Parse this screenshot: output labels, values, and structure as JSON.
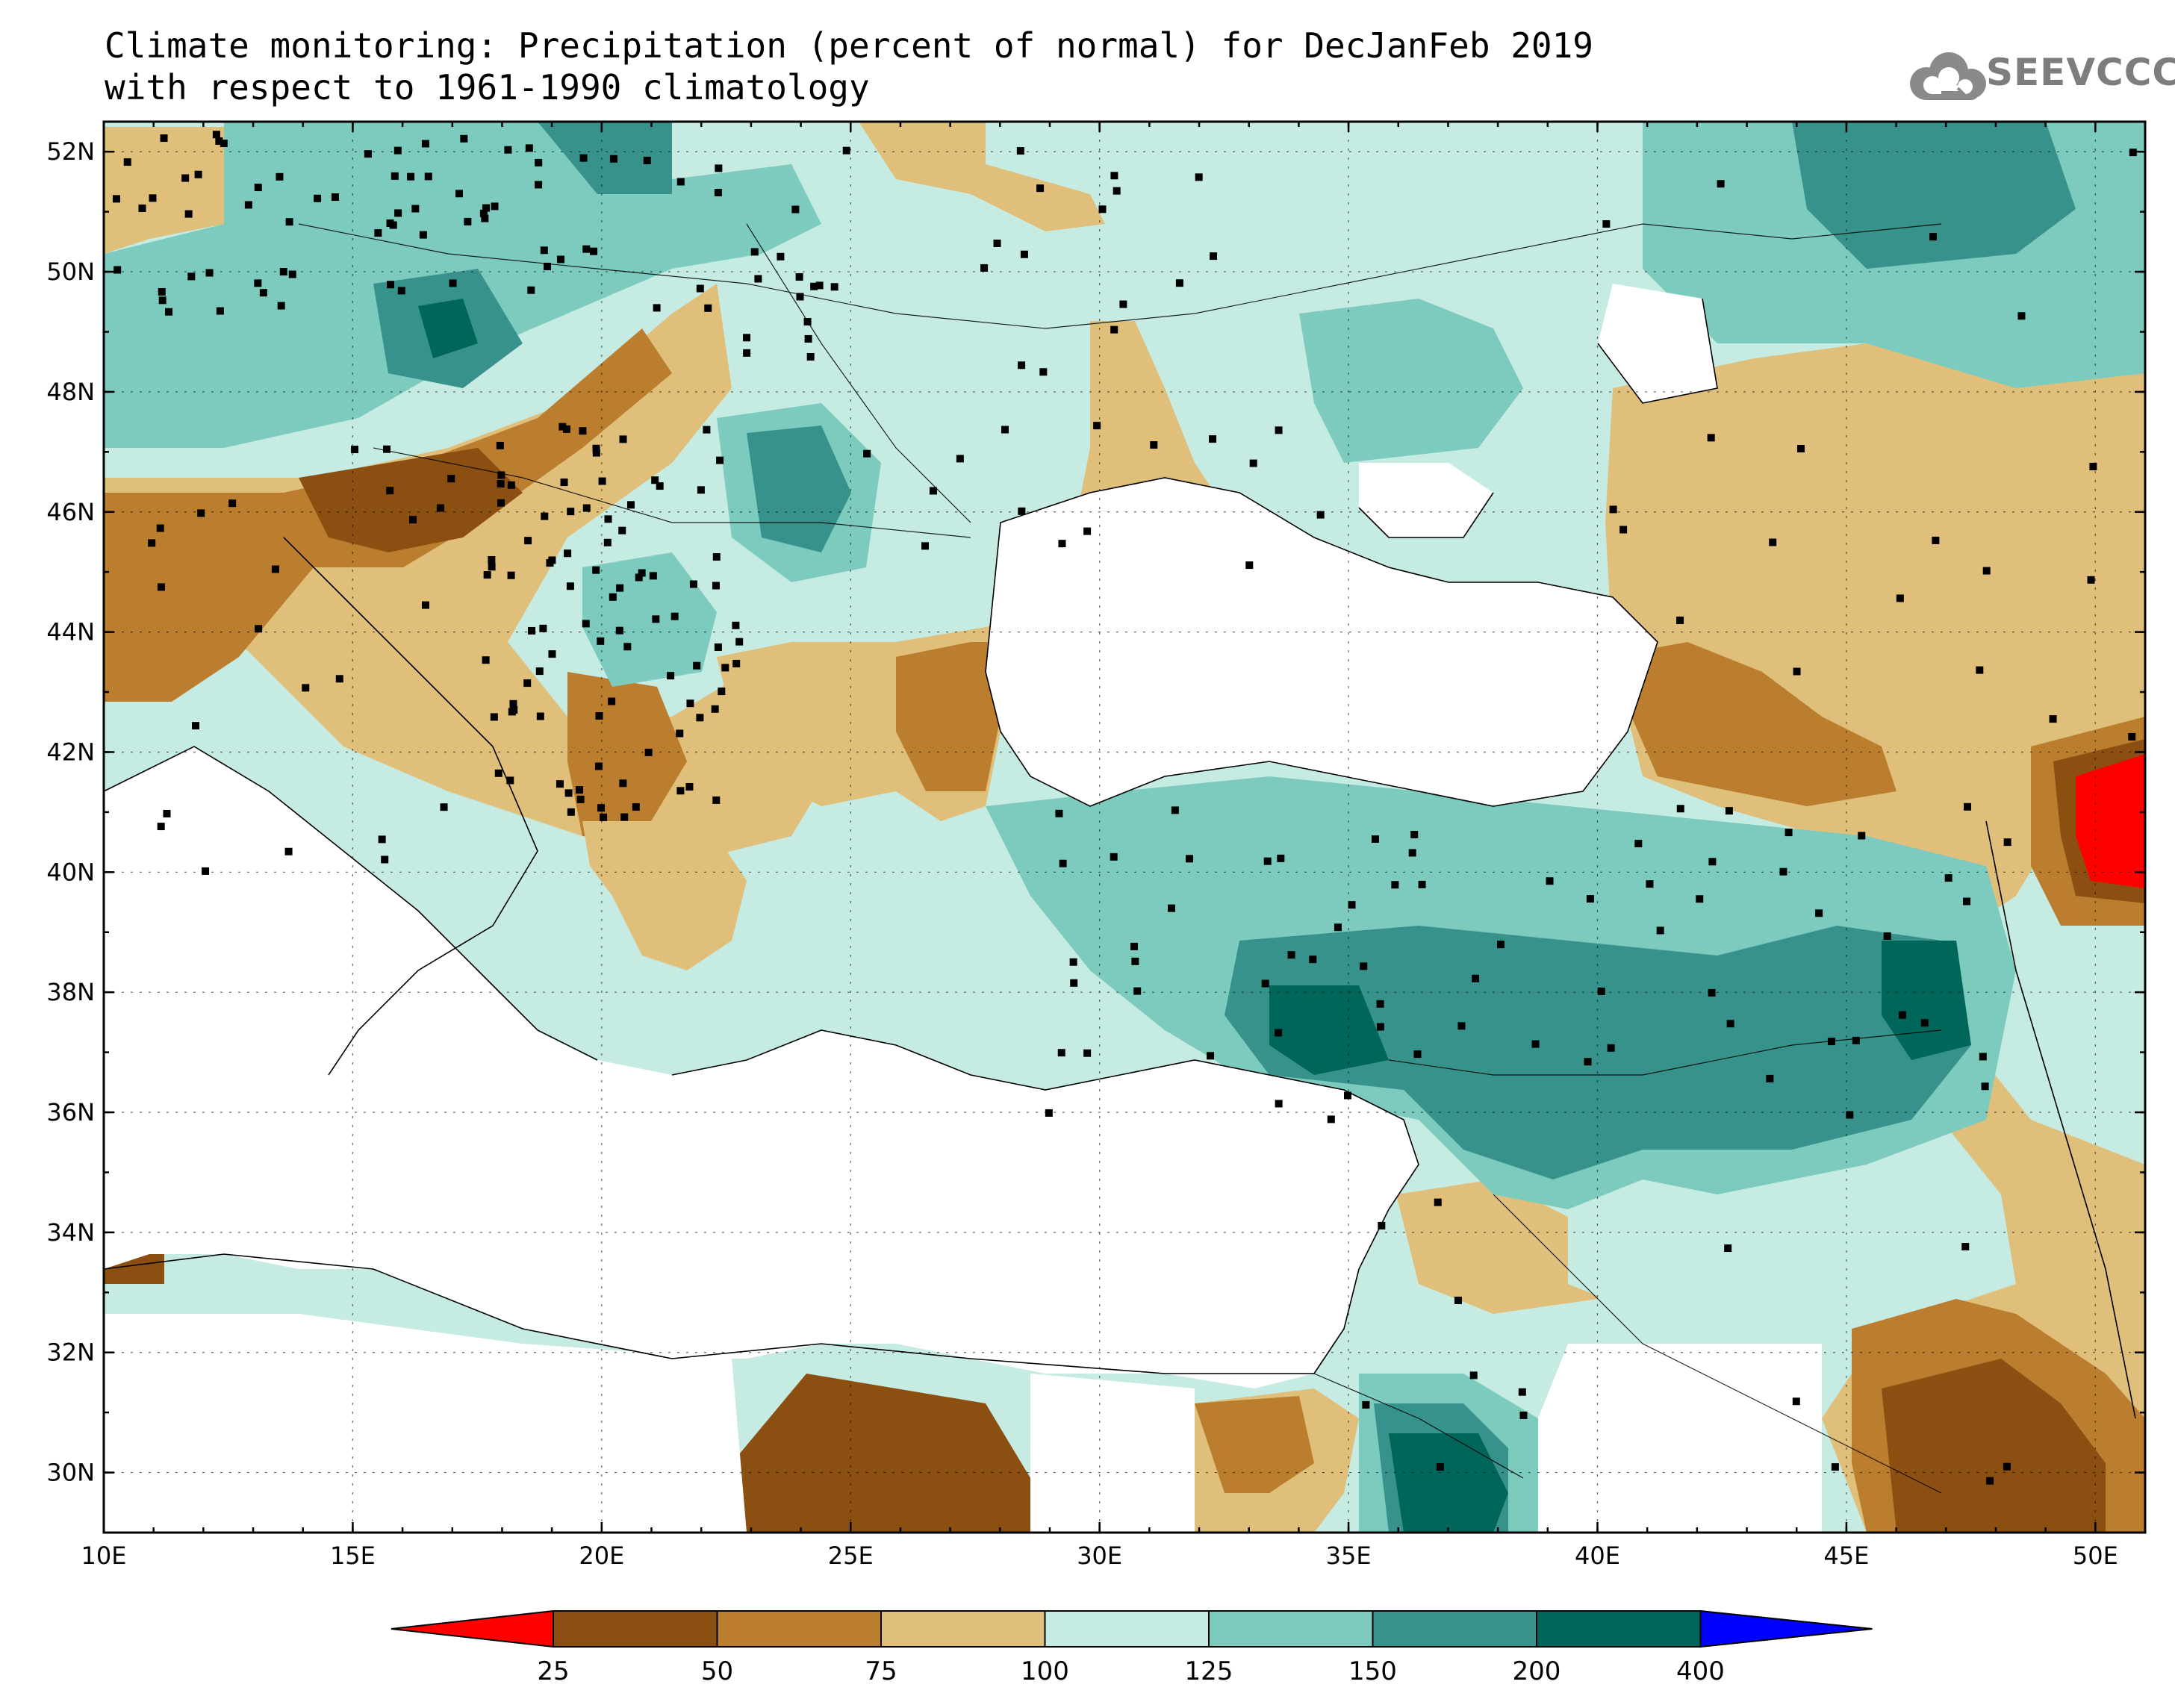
{
  "title": {
    "line1": "Climate monitoring: Precipitation (percent of normal) for DecJanFeb 2019",
    "line2": "with respect to 1961-1990 climatology"
  },
  "logo": {
    "text": "SEEVCCC",
    "icon": "cloud-icon"
  },
  "axes": {
    "lat_labels": [
      "52N",
      "50N",
      "48N",
      "46N",
      "44N",
      "42N",
      "40N",
      "38N",
      "36N",
      "34N",
      "32N",
      "30N"
    ],
    "lon_labels": [
      "10E",
      "15E",
      "20E",
      "25E",
      "30E",
      "35E",
      "40E",
      "45E",
      "50E"
    ],
    "lat_range": [
      29,
      52.5
    ],
    "lon_range": [
      10,
      51
    ]
  },
  "colorbar": {
    "labels": [
      "25",
      "50",
      "75",
      "100",
      "125",
      "150",
      "200",
      "400"
    ],
    "colors": [
      "#ff0000",
      "#8b4f12",
      "#bb7d2e",
      "#dfbf7a",
      "#c6ebe3",
      "#7ccbbe",
      "#36928a",
      "#006659",
      "#0000ff"
    ]
  }
}
